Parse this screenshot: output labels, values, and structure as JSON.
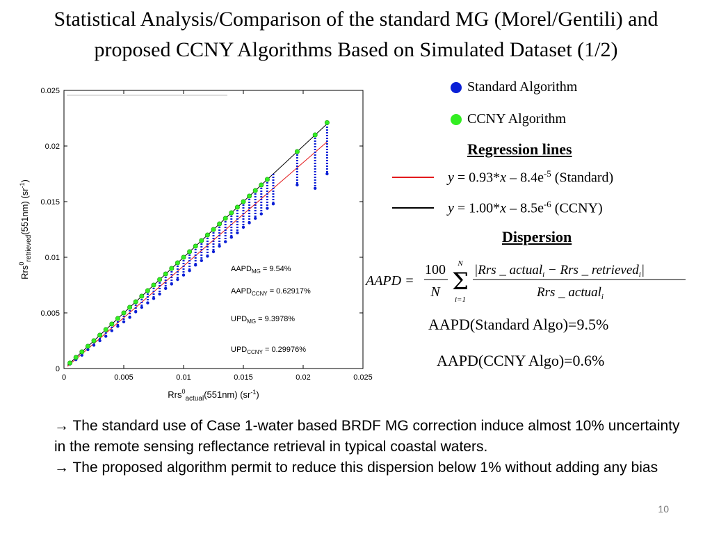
{
  "title": {
    "line1": "Statistical Analysis/Comparison of the standard MG (Morel/Gentili) and",
    "line2": "proposed CCNY Algorithms Based on Simulated Dataset (1/2)"
  },
  "legend": [
    {
      "label": "Standard Algorithm",
      "color": "#0a1fd6"
    },
    {
      "label": "CCNY Algorithm",
      "color": "#33ee22"
    }
  ],
  "regression": {
    "heading": "Regression lines",
    "standard": {
      "color": "#e31a1c",
      "y": "y",
      "eq": " = 0.93*",
      "x": "x",
      "rest": " – 8.4e",
      "exp": "-5",
      "tail": " (Standard)"
    },
    "ccny": {
      "color": "#000000",
      "y": "y",
      "eq": " = 1.00*",
      "x": "x",
      "rest": " – 8.5e",
      "exp": "-6",
      "tail": " (CCNY)"
    }
  },
  "dispersion": {
    "heading": "Dispersion",
    "formula": {
      "lhs": "AAPD =",
      "num": "100",
      "den": "N",
      "sum_top": "N",
      "sum_bottom": "i=1",
      "frac_num": "|Rrs _ actual",
      "frac_num_sub": "i",
      "frac_num_mid": " − Rrs _ retrieved",
      "frac_num_sub2": "i",
      "frac_num_end": "|",
      "frac_den": "Rrs _ actual",
      "frac_den_sub": "i"
    },
    "aapd_standard": "AAPD(Standard Algo)=9.5%",
    "aapd_ccny": "AAPD(CCNY Algo)=0.6%"
  },
  "bullets": [
    "→ The standard use of Case 1-water based BRDF MG correction induce almost 10% uncertainty in the remote sensing reflectance retrieval in typical coastal waters.",
    "→ The proposed algorithm permit to reduce this dispersion below 1% without adding any bias"
  ],
  "page_number": "10",
  "chart_data": {
    "type": "scatter",
    "xlim": [
      0,
      0.025
    ],
    "ylim": [
      0,
      0.025
    ],
    "xticks": [
      "0",
      "0.005",
      "0.01",
      "0.015",
      "0.02",
      "0.025"
    ],
    "yticks": [
      "0",
      "0.005",
      "0.01",
      "0.015",
      "0.02",
      "0.025"
    ],
    "xticks_values": [
      0,
      0.005,
      0.01,
      0.015,
      0.02,
      0.025
    ],
    "yticks_values": [
      0,
      0.005,
      0.01,
      0.015,
      0.02,
      0.025
    ],
    "xlabel": {
      "base": "Rrs",
      "sup": "0",
      "sub": "actual",
      "rest": "(551nm) (sr",
      "exp": "-1",
      "close": ")"
    },
    "ylabel": {
      "base": "Rrs",
      "sup": "0",
      "sub": "retrieved",
      "rest": "(551nm) (sr",
      "exp": "-1",
      "close": ")"
    },
    "annotations": [
      {
        "base": "AAPD",
        "sub": "MG",
        "value": " = 9.54%"
      },
      {
        "base": "AAPD",
        "sub": "CCNY",
        "value": " = 0.62917%"
      },
      {
        "base": "UPD",
        "sub": "MG",
        "value": " = 9.3978%"
      },
      {
        "base": "UPD",
        "sub": "CCNY",
        "value": " = 0.29976%"
      }
    ],
    "grid": false,
    "series": [
      {
        "name": "Standard Algorithm",
        "color": "#0a1fd6",
        "x": [
          0.0005,
          0.001,
          0.0015,
          0.002,
          0.0025,
          0.003,
          0.0035,
          0.004,
          0.0045,
          0.005,
          0.0055,
          0.006,
          0.0065,
          0.007,
          0.0075,
          0.008,
          0.0085,
          0.009,
          0.0095,
          0.01,
          0.0105,
          0.011,
          0.0115,
          0.012,
          0.0125,
          0.013,
          0.0135,
          0.014,
          0.0145,
          0.015,
          0.0155,
          0.016,
          0.0165,
          0.017,
          0.0175,
          0.0195,
          0.021,
          0.022
        ],
        "y_min": [
          0.0004,
          0.0008,
          0.0012,
          0.0017,
          0.0021,
          0.0025,
          0.0029,
          0.0034,
          0.0038,
          0.0042,
          0.0046,
          0.0051,
          0.0055,
          0.0059,
          0.0063,
          0.0067,
          0.0072,
          0.0076,
          0.008,
          0.0084,
          0.0088,
          0.0093,
          0.0097,
          0.0101,
          0.0105,
          0.011,
          0.0114,
          0.0118,
          0.0122,
          0.0127,
          0.0131,
          0.0135,
          0.0139,
          0.0144,
          0.0148,
          0.0165,
          0.0162,
          0.0175
        ],
        "y_max": [
          0.0005,
          0.001,
          0.0015,
          0.002,
          0.0025,
          0.003,
          0.0035,
          0.004,
          0.0045,
          0.005,
          0.0055,
          0.006,
          0.0065,
          0.007,
          0.0075,
          0.008,
          0.0085,
          0.009,
          0.0095,
          0.01,
          0.0105,
          0.011,
          0.0115,
          0.012,
          0.0125,
          0.013,
          0.0135,
          0.014,
          0.0145,
          0.015,
          0.0155,
          0.016,
          0.0165,
          0.017,
          0.0175,
          0.0195,
          0.021,
          0.022
        ]
      },
      {
        "name": "CCNY Algorithm",
        "color": "#33ee22",
        "x": [
          0.0005,
          0.001,
          0.0015,
          0.002,
          0.0025,
          0.003,
          0.0035,
          0.004,
          0.0045,
          0.005,
          0.0055,
          0.006,
          0.0065,
          0.007,
          0.0075,
          0.008,
          0.0085,
          0.009,
          0.0095,
          0.01,
          0.0105,
          0.011,
          0.0115,
          0.012,
          0.0125,
          0.013,
          0.0135,
          0.014,
          0.0145,
          0.015,
          0.0155,
          0.016,
          0.0165,
          0.017,
          0.0195,
          0.021,
          0.022
        ],
        "y": [
          0.0005,
          0.001,
          0.0015,
          0.002,
          0.0025,
          0.003,
          0.0035,
          0.004,
          0.0045,
          0.005,
          0.0055,
          0.006,
          0.0065,
          0.007,
          0.0075,
          0.008,
          0.0085,
          0.009,
          0.0095,
          0.01,
          0.0105,
          0.011,
          0.0115,
          0.012,
          0.0125,
          0.013,
          0.0135,
          0.014,
          0.0145,
          0.015,
          0.0155,
          0.016,
          0.0165,
          0.017,
          0.0195,
          0.021,
          0.0221
        ]
      }
    ],
    "regression_lines": [
      {
        "name": "Standard",
        "slope": 0.93,
        "intercept": -8.4e-05,
        "color": "#e31a1c"
      },
      {
        "name": "CCNY",
        "slope": 1.0,
        "intercept": -8.5e-06,
        "color": "#000000"
      }
    ]
  }
}
